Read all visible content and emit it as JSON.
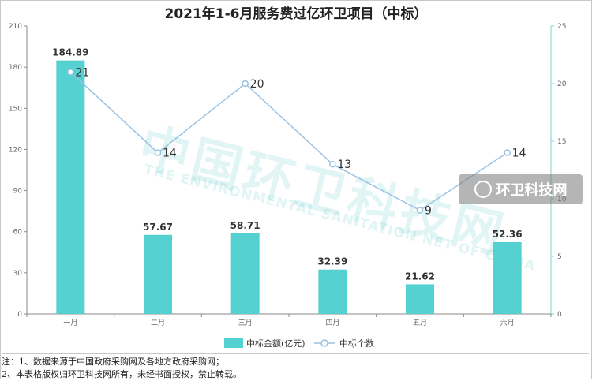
{
  "chart_data": {
    "type": "bar+line",
    "title": "2021年1-6月服务费过亿环卫项目（中标）",
    "categories": [
      "一月",
      "二月",
      "三月",
      "四月",
      "五月",
      "六月"
    ],
    "series": [
      {
        "name": "中标金额(亿元)",
        "type": "bar",
        "axis": "left",
        "values": [
          184.89,
          57.67,
          58.71,
          32.39,
          21.62,
          52.36
        ],
        "color": "#56d1d1"
      },
      {
        "name": "中标个数",
        "type": "line",
        "axis": "right",
        "values": [
          21,
          14,
          20,
          13,
          9,
          14
        ],
        "color": "#9cc2e3"
      }
    ],
    "y_left": {
      "min": 0,
      "max": 210,
      "ticks": [
        0,
        30,
        60,
        90,
        120,
        150,
        180,
        210
      ]
    },
    "y_right": {
      "min": 0,
      "max": 25,
      "ticks": [
        0,
        5,
        10,
        15,
        20,
        25
      ]
    },
    "legend_position": "bottom"
  },
  "notes": [
    "注：1、数据来源于中国政府采购网及各地方政府采购网；",
    "2、本表格版权归环卫科技网所有，未经书面授权，禁止转载。"
  ],
  "watermark": {
    "cn": "中国环卫科技网",
    "en": "THE ENVIRONMENTAL SANITATION NET OF CHINA",
    "badge": "环卫科技网"
  }
}
